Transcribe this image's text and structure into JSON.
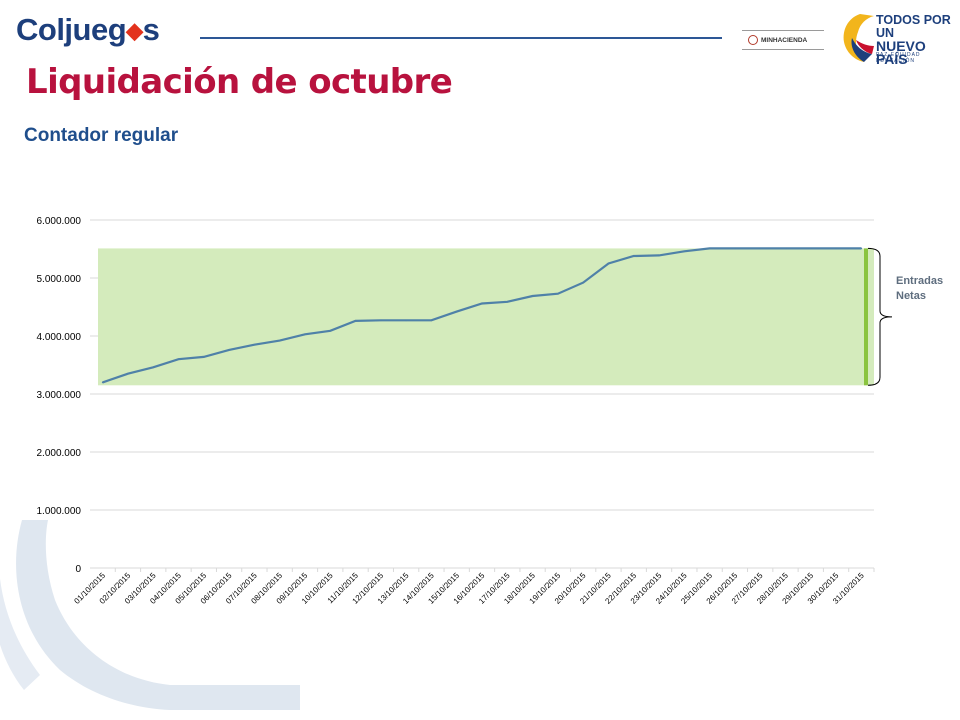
{
  "header": {
    "brand": {
      "name_prefix": "Coljueg",
      "name_suffix": "s"
    },
    "ministry_logo": "MINHACIENDA",
    "gov_logo": {
      "line1": "TODOS POR UN",
      "line2": "NUEVO PAÍS",
      "tagline": "PAZ  EQUIDAD  EDUCACIÓN"
    }
  },
  "page": {
    "title": "Liquidación de octubre",
    "subtitle": "Contador regular"
  },
  "annotation": {
    "line1": "Entradas",
    "line2": "Netas"
  },
  "colors": {
    "title": "#b8123e",
    "subtitle": "#1f4e8c",
    "line": "#4f81a8",
    "band_fill": "#d4ebbc",
    "bar_accent": "#8ac43f",
    "grid": "#d9d9d9",
    "brand_blue": "#1d3f7c"
  },
  "chart_data": {
    "type": "line",
    "x": [
      "01/10/2015",
      "02/10/2015",
      "03/10/2015",
      "04/10/2015",
      "05/10/2015",
      "06/10/2015",
      "07/10/2015",
      "08/10/2015",
      "09/10/2015",
      "10/10/2015",
      "11/10/2015",
      "12/10/2015",
      "13/10/2015",
      "14/10/2015",
      "15/10/2015",
      "16/10/2015",
      "17/10/2015",
      "18/10/2015",
      "19/10/2015",
      "20/10/2015",
      "21/10/2015",
      "22/10/2015",
      "23/10/2015",
      "24/10/2015",
      "25/10/2015",
      "26/10/2015",
      "27/10/2015",
      "28/10/2015",
      "29/10/2015",
      "30/10/2015",
      "31/10/2015"
    ],
    "series": [
      {
        "values": [
          3200000,
          3350000,
          3460000,
          3600000,
          3640000,
          3760000,
          3850000,
          3920000,
          4030000,
          4090000,
          4260000,
          4270000,
          4270000,
          4270000,
          4420000,
          4560000,
          4590000,
          4690000,
          4730000,
          4920000,
          5250000,
          5380000,
          5390000,
          5460000,
          5510000,
          5510000,
          5510000,
          5510000,
          5510000,
          5510000,
          5510000
        ]
      }
    ],
    "yticks": [
      "0",
      "1.000.000",
      "2.000.000",
      "3.000.000",
      "4.000.000",
      "5.000.000",
      "6.000.000"
    ],
    "ylim": [
      0,
      6000000
    ],
    "grid": true,
    "highlight_band": [
      3150000,
      5510000
    ]
  }
}
